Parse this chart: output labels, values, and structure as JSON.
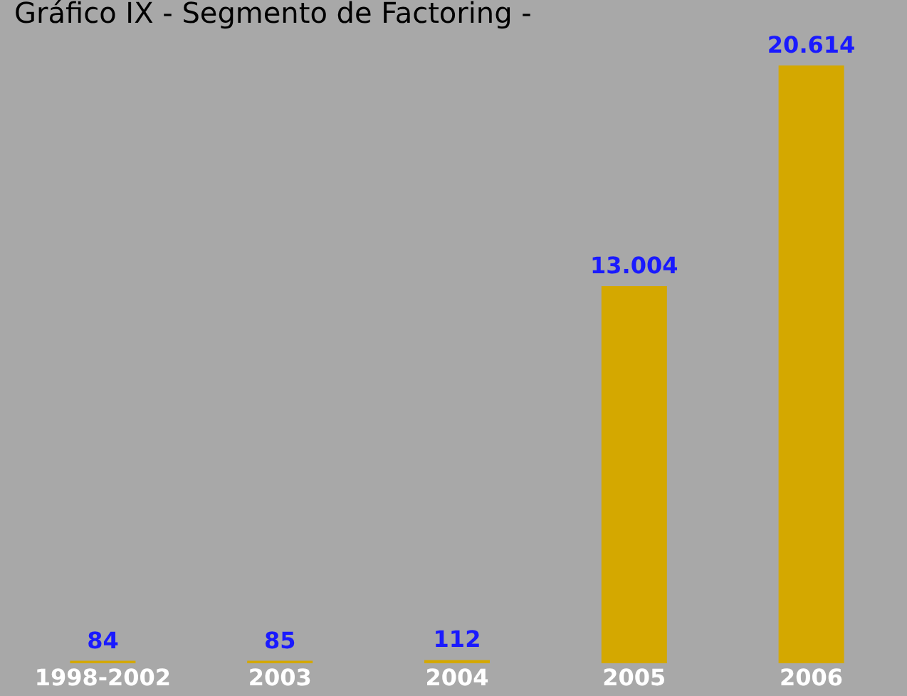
{
  "chart_data": {
    "type": "bar",
    "title": "Gráfico IX - Segmento de Factoring -",
    "categories": [
      "1998-2002",
      "2003",
      "2004",
      "2005",
      "2006"
    ],
    "values": [
      84,
      85,
      112,
      13004,
      20614
    ],
    "value_labels": [
      "84",
      "85",
      "112",
      "13.004",
      "20.614"
    ],
    "color": "#d4a800",
    "tick_labels": "x",
    "grid": false
  }
}
